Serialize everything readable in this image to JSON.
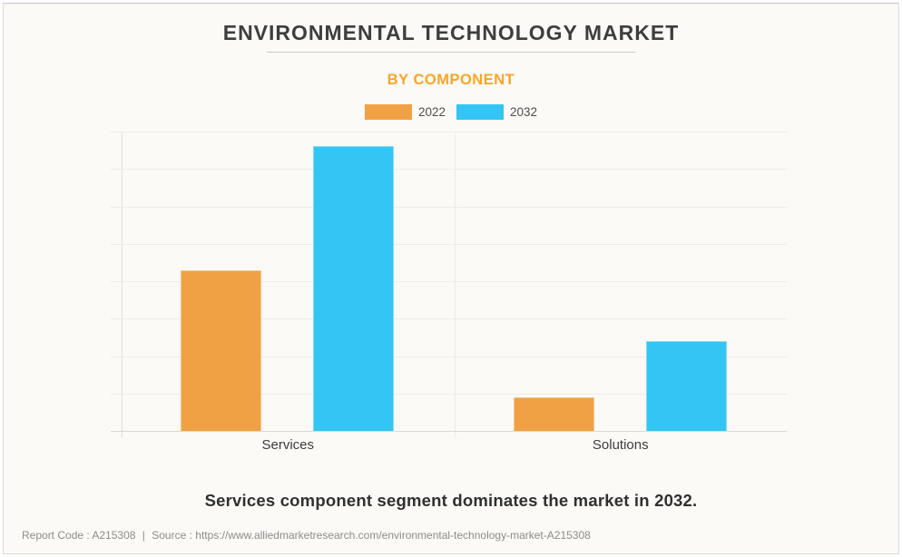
{
  "header": {
    "title": "ENVIRONMENTAL TECHNOLOGY MARKET",
    "subtitle": "BY COMPONENT"
  },
  "chart_data": {
    "type": "bar",
    "categories": [
      "Services",
      "Solutions"
    ],
    "series": [
      {
        "name": "2022",
        "color": "#F0A144",
        "values": [
          4.3,
          0.9
        ]
      },
      {
        "name": "2032",
        "color": "#33C5F3",
        "values": [
          7.6,
          2.4
        ]
      }
    ],
    "title": "ENVIRONMENTAL TECHNOLOGY MARKET",
    "subtitle": "BY COMPONENT",
    "xlabel": "",
    "ylabel": "",
    "ylim": [
      0,
      8
    ],
    "y_tick_labels_visible": false,
    "gridline_count": 9,
    "grid": true,
    "legend_position": "top",
    "annotation": "Services component segment dominates the market in 2032."
  },
  "headline": "Services component segment dominates the market in 2032.",
  "footer": {
    "report_code": "Report Code : A215308",
    "separator": "|",
    "source": "Source : https://www.alliedmarketresearch.com/environmental-technology-market-A215308"
  },
  "colors": {
    "background": "#FCFAF6",
    "title_text": "#3E3E3E",
    "subtitle_text": "#FCA426",
    "series_2022": "#F0A144",
    "series_2032": "#33C5F3",
    "gridline": "#EDECE9",
    "footer_text": "#8C8C8C"
  }
}
